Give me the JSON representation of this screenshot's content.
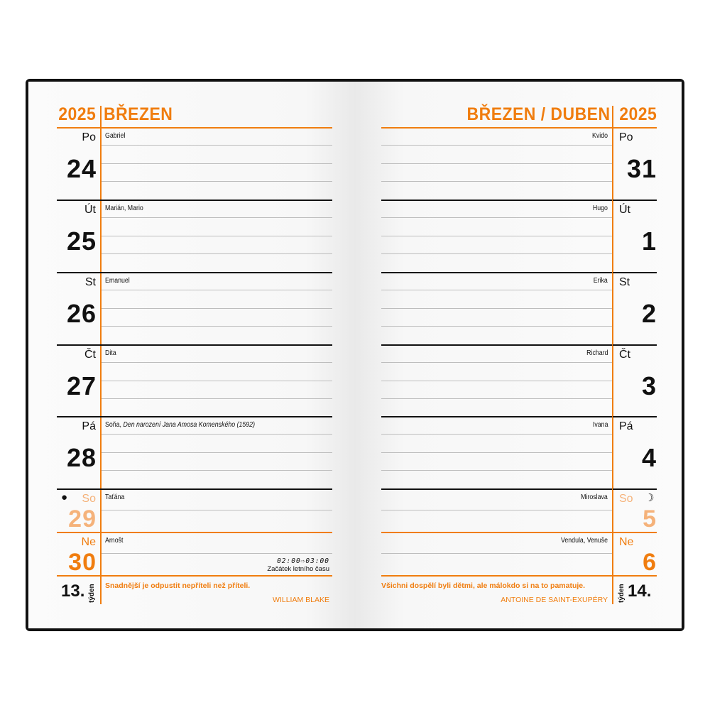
{
  "colors": {
    "accent": "#f07d0f",
    "saturday": "#f5b27a",
    "text": "#111111"
  },
  "left": {
    "year": "2025",
    "month": "BŘEZEN",
    "days": [
      {
        "dow": "Po",
        "num": "24",
        "nameday": "Gabriel",
        "type": "weekday"
      },
      {
        "dow": "Út",
        "num": "25",
        "nameday": "Marián, Mario",
        "type": "weekday"
      },
      {
        "dow": "St",
        "num": "26",
        "nameday": "Emanuel",
        "type": "weekday"
      },
      {
        "dow": "Čt",
        "num": "27",
        "nameday": "Dita",
        "type": "weekday"
      },
      {
        "dow": "Pá",
        "num": "28",
        "nameday": "Soňa,",
        "note": "Den narození Jana Amosa Komenského (1592)",
        "type": "weekday"
      },
      {
        "dow": "So",
        "num": "29",
        "nameday": "Taťána",
        "type": "saturday",
        "icon": "new-moon-icon",
        "icon_glyph": "●"
      },
      {
        "dow": "Ne",
        "num": "30",
        "nameday": "Arnošt",
        "type": "sunday"
      }
    ],
    "dst": {
      "time": "02:00⇨03:00",
      "label": "Začátek letního času"
    },
    "week_number": "13.",
    "week_label": "týden",
    "quote": "Snadnější je odpustit nepříteli než příteli.",
    "author": "WILLIAM BLAKE"
  },
  "right": {
    "year": "2025",
    "month": "BŘEZEN / DUBEN",
    "days": [
      {
        "dow": "Po",
        "num": "31",
        "nameday": "Kvido",
        "type": "weekday"
      },
      {
        "dow": "Út",
        "num": "1",
        "nameday": "Hugo",
        "type": "weekday"
      },
      {
        "dow": "St",
        "num": "2",
        "nameday": "Erika",
        "type": "weekday"
      },
      {
        "dow": "Čt",
        "num": "3",
        "nameday": "Richard",
        "type": "weekday"
      },
      {
        "dow": "Pá",
        "num": "4",
        "nameday": "Ivana",
        "type": "weekday"
      },
      {
        "dow": "So",
        "num": "5",
        "nameday": "Miroslava",
        "type": "saturday",
        "icon": "first-quarter-moon-icon",
        "icon_glyph": "☽"
      },
      {
        "dow": "Ne",
        "num": "6",
        "nameday": "Vendula, Venuše",
        "type": "sunday"
      }
    ],
    "week_number": "14.",
    "week_label": "týden",
    "quote": "Všichni dospělí byli dětmi, ale málokdo si na to pamatuje.",
    "author": "ANTOINE DE SAINT-EXUPÉRY"
  }
}
